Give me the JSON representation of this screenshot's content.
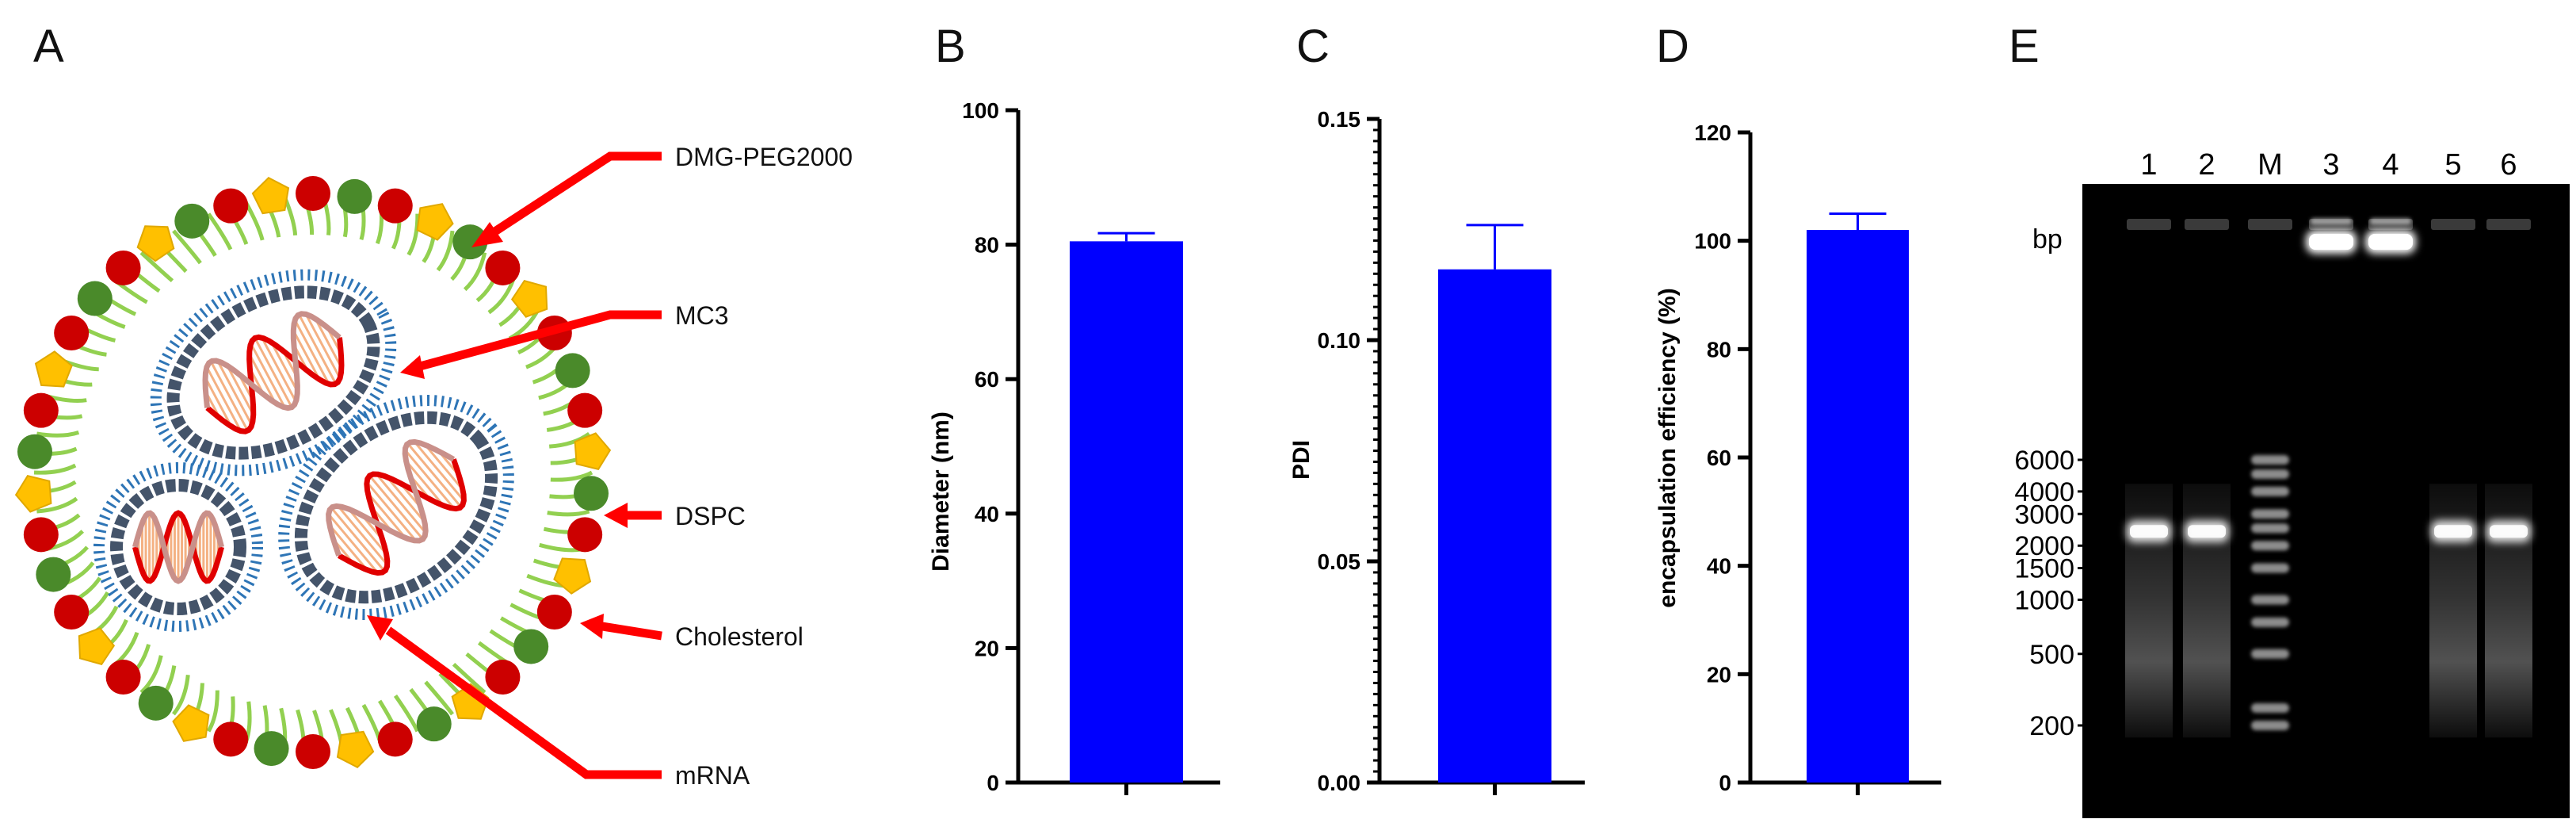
{
  "panel_labels": [
    "A",
    "B",
    "C",
    "D",
    "E"
  ],
  "diagram": {
    "components": [
      "DMG-PEG2000",
      "MC3",
      "DSPC",
      "Cholesterol",
      "mRNA"
    ]
  },
  "colors": {
    "bar": "#0000ff",
    "axis": "#000000",
    "arrow": "#ff0000",
    "red_lipid": "#cc0000",
    "green_lipid": "#4a8a2a",
    "cholesterol": "#ffc000",
    "tail": "#92d050",
    "mrna_bilayer": "#2e75b6",
    "mrna_head": "#44546a",
    "gel_background": "#000000"
  },
  "chart_data": [
    {
      "panel": "B",
      "type": "bar",
      "categories": [
        ""
      ],
      "values": [
        80.5
      ],
      "errors": [
        1.2
      ],
      "title": "",
      "xlabel": "",
      "ylabel": "Diameter (nm)",
      "ylim": [
        0,
        100
      ],
      "yticks": [
        "0",
        "20",
        "40",
        "60",
        "80",
        "100"
      ],
      "tick_values": [
        0,
        20,
        40,
        60,
        80,
        100
      ]
    },
    {
      "panel": "C",
      "type": "bar",
      "categories": [
        ""
      ],
      "values": [
        0.116
      ],
      "errors": [
        0.01
      ],
      "title": "",
      "xlabel": "",
      "ylabel": "PDI",
      "ylim": [
        0,
        0.15
      ],
      "yticks": [
        "0.00",
        "0.05",
        "0.10",
        "0.15"
      ],
      "tick_values": [
        0,
        0.05,
        0.1,
        0.15
      ],
      "minor_ticks": true
    },
    {
      "panel": "D",
      "type": "bar",
      "categories": [
        ""
      ],
      "values": [
        102
      ],
      "errors": [
        3
      ],
      "title": "",
      "xlabel": "",
      "ylabel": "encapsulation efficiency (%)",
      "ylim": [
        0,
        120
      ],
      "yticks": [
        "0",
        "20",
        "40",
        "60",
        "80",
        "100",
        "120"
      ],
      "tick_values": [
        0,
        20,
        40,
        60,
        80,
        100,
        120
      ]
    }
  ],
  "gel": {
    "lanes": [
      "1",
      "2",
      "M",
      "3",
      "4",
      "5",
      "6"
    ],
    "unit": "bp",
    "ladder_labels": [
      "6000",
      "4000",
      "3000",
      "2000",
      "1500",
      "1000",
      "500",
      "200"
    ],
    "ladder_bp": [
      6000,
      4000,
      3000,
      2000,
      1500,
      1000,
      500,
      200
    ]
  }
}
